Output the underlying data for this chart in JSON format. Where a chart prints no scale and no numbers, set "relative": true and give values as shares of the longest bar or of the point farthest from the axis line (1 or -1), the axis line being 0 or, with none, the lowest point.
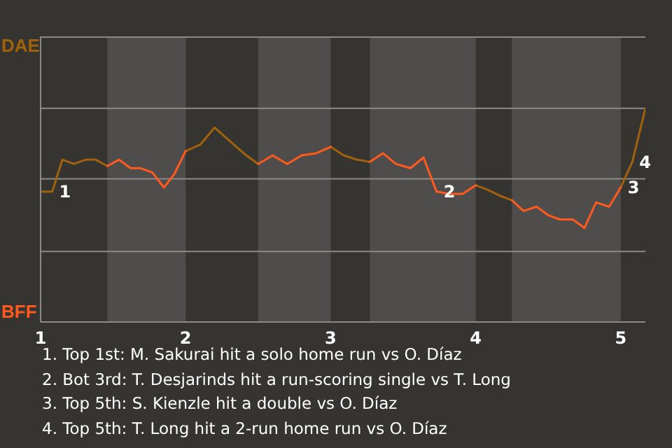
{
  "chart_data": {
    "type": "line",
    "relative": true,
    "x": [
      1.0,
      1.08,
      1.15,
      1.23,
      1.31,
      1.38,
      1.46,
      1.54,
      1.62,
      1.69,
      1.77,
      1.85,
      1.92,
      2.0,
      2.1,
      2.2,
      2.3,
      2.4,
      2.5,
      2.6,
      2.7,
      2.8,
      2.9,
      3.0,
      3.09,
      3.18,
      3.27,
      3.36,
      3.45,
      3.55,
      3.64,
      3.73,
      3.82,
      3.91,
      4.0,
      4.08,
      4.17,
      4.25,
      4.33,
      4.42,
      4.5,
      4.58,
      4.67,
      4.75,
      4.83,
      4.92,
      5.0,
      5.08,
      5.17
    ],
    "xlim": [
      1,
      5.17
    ],
    "xticks": [
      1,
      2,
      3,
      4,
      5
    ],
    "series": [
      {
        "color": "#a0620c",
        "values": [
          0.61,
          0.61,
          0.76,
          0.74,
          0.76,
          0.76,
          0.73,
          null,
          null,
          null,
          null,
          null,
          null,
          0.8,
          0.83,
          0.91,
          0.85,
          0.79,
          0.74,
          null,
          null,
          null,
          null,
          0.82,
          0.78,
          0.76,
          0.75,
          null,
          null,
          null,
          null,
          null,
          null,
          null,
          0.64,
          0.62,
          0.59,
          0.57,
          null,
          null,
          null,
          null,
          null,
          null,
          null,
          null,
          0.63,
          0.75,
          1
        ]
      },
      {
        "color": "#ff5a1e",
        "values": [
          null,
          null,
          null,
          null,
          null,
          null,
          0.73,
          0.76,
          0.72,
          0.72,
          0.7,
          0.63,
          0.69,
          0.8,
          null,
          null,
          null,
          null,
          0.74,
          0.78,
          0.74,
          0.78,
          0.79,
          0.82,
          null,
          null,
          0.75,
          0.79,
          0.74,
          0.72,
          0.77,
          0.61,
          0.6,
          0.6,
          0.64,
          null,
          null,
          0.57,
          0.52,
          0.54,
          0.5,
          0.48,
          0.48,
          0.44,
          0.56,
          0.54,
          0.63,
          null,
          null
        ]
      }
    ],
    "marker": "none",
    "line_style": "solid",
    "ref_lines": [
      {
        "axis": "y",
        "value": 0.33,
        "color": "#8c8a88"
      },
      {
        "axis": "y",
        "value": 0.67,
        "color": "#8c8a88"
      },
      {
        "axis": "y",
        "value": 1.0,
        "color": "#8c8a88"
      }
    ],
    "bands": [
      {
        "axis": "x",
        "from": 1.46,
        "to": 2,
        "color": "#4f4d4b"
      },
      {
        "axis": "x",
        "from": 2.5,
        "to": 3,
        "color": "#4f4d4b"
      },
      {
        "axis": "x",
        "from": 3.27,
        "to": 4,
        "color": "#4f4d4b"
      },
      {
        "axis": "x",
        "from": 4.25,
        "to": 5,
        "color": "#4f4d4b"
      }
    ],
    "annotations": [
      "DAE",
      "BFF",
      {
        "text": "1",
        "x": 1.08,
        "y": 0.61
      },
      {
        "text": "2",
        "x": 3.73,
        "y": 0.61
      },
      {
        "text": "3",
        "x": 5,
        "y": 0.63
      },
      {
        "text": "4",
        "x": 5.08,
        "y": 0.75
      },
      "1. Top 1st: M. Sakurai hit a solo home run vs O. Díaz",
      "2. Bot 3rd: T. Desjarinds hit a run-scoring single vs T. Long",
      "3. Top 5th: S. Kienzle hit a double vs O. Díaz",
      "4. Top 5th: T. Long hit a 2-run home run vs O. Díaz"
    ]
  }
}
